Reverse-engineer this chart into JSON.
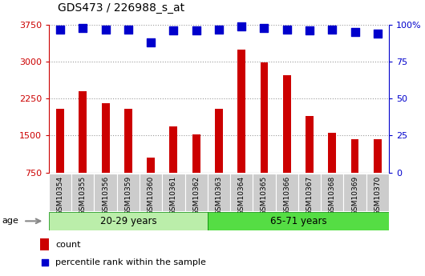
{
  "title": "GDS473 / 226988_s_at",
  "samples": [
    "GSM10354",
    "GSM10355",
    "GSM10356",
    "GSM10359",
    "GSM10360",
    "GSM10361",
    "GSM10362",
    "GSM10363",
    "GSM10364",
    "GSM10365",
    "GSM10366",
    "GSM10367",
    "GSM10368",
    "GSM10369",
    "GSM10370"
  ],
  "counts": [
    2050,
    2400,
    2150,
    2050,
    1050,
    1680,
    1520,
    2050,
    3250,
    2980,
    2720,
    1900,
    1560,
    1430,
    1420
  ],
  "percentile_ranks": [
    97,
    98,
    97,
    97,
    88,
    96,
    96,
    97,
    99,
    98,
    97,
    96,
    97,
    95,
    94
  ],
  "group1_label": "20-29 years",
  "group2_label": "65-71 years",
  "group1_count": 7,
  "group2_count": 8,
  "bar_color": "#cc0000",
  "dot_color": "#0000cc",
  "ylim_left": [
    750,
    3750
  ],
  "yticks_left": [
    750,
    1500,
    2250,
    3000,
    3750
  ],
  "ylim_right": [
    0,
    100
  ],
  "yticks_right": [
    0,
    25,
    50,
    75,
    100
  ],
  "group1_bg": "#bbeeaa",
  "group2_bg": "#55dd44",
  "xlabel_bg": "#cccccc",
  "bar_width": 0.35,
  "dot_size": 45,
  "gridline_color": "#000000",
  "gridline_alpha": 0.4
}
